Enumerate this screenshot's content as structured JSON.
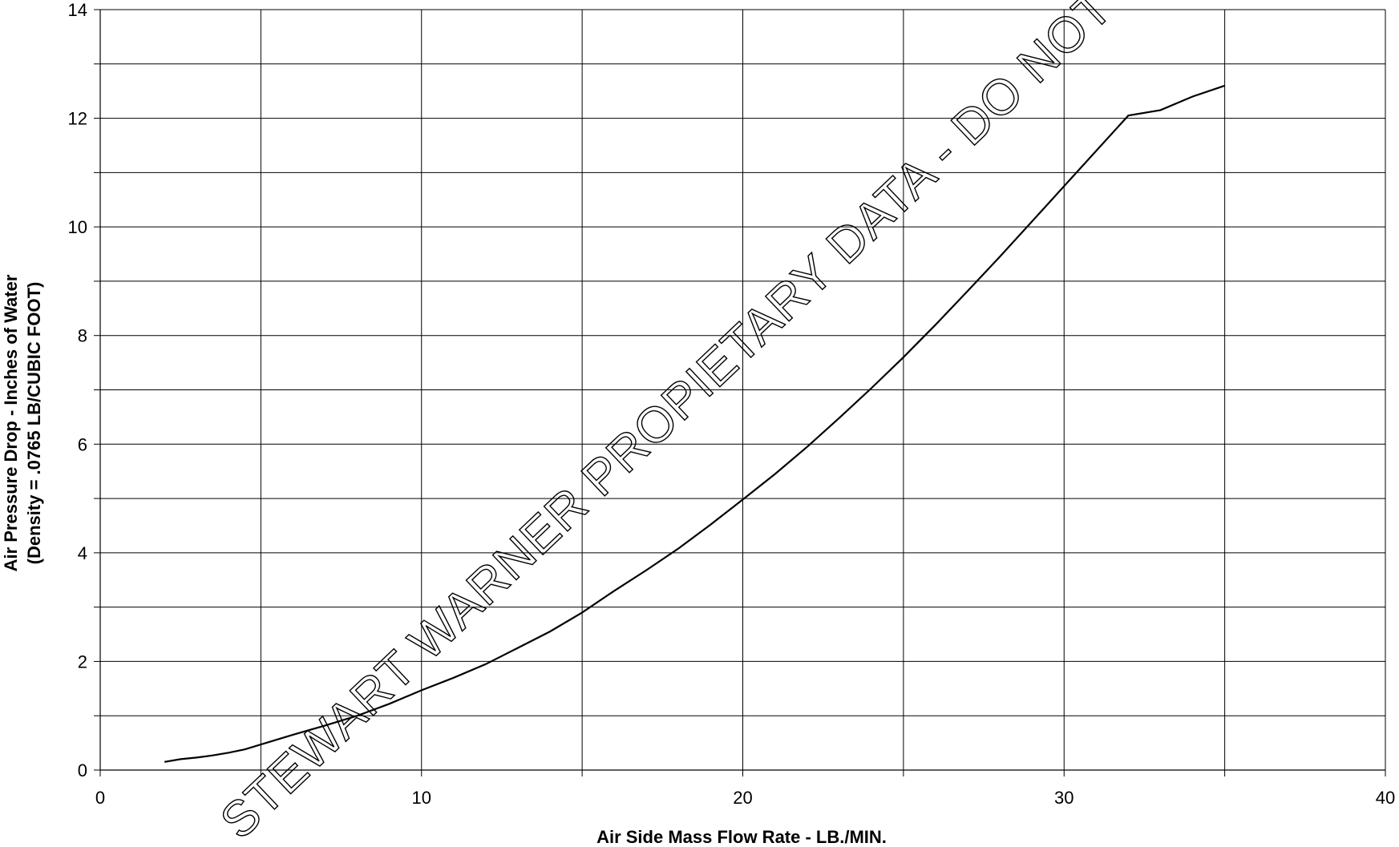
{
  "chart_data": {
    "type": "line",
    "title": "",
    "xlabel": "Air Side Mass Flow Rate - LB./MIN.",
    "ylabel_line1": "Air Pressure Drop - Inches of Water",
    "ylabel_line2": "(Density = .0765 LB/CUBIC FOOT)",
    "xlim": [
      0,
      40
    ],
    "ylim": [
      0,
      14
    ],
    "x_ticks": [
      0,
      10,
      20,
      30,
      40
    ],
    "y_ticks": [
      0,
      2,
      4,
      6,
      8,
      10,
      12,
      14
    ],
    "x_minor_gridlines": [
      5,
      15,
      25,
      35
    ],
    "y_minor_gridlines": [
      1,
      3,
      5,
      7,
      9,
      11,
      13
    ],
    "grid": true,
    "legend": "none",
    "series": [
      {
        "points": [
          [
            2,
            0.15
          ],
          [
            2.5,
            0.2
          ],
          [
            3,
            0.23
          ],
          [
            3.5,
            0.27
          ],
          [
            4,
            0.32
          ],
          [
            4.5,
            0.38
          ],
          [
            5,
            0.47
          ],
          [
            6,
            0.65
          ],
          [
            7,
            0.82
          ],
          [
            8,
            1.0
          ],
          [
            9,
            1.22
          ],
          [
            10,
            1.47
          ],
          [
            11,
            1.7
          ],
          [
            12,
            1.95
          ],
          [
            13,
            2.25
          ],
          [
            14,
            2.55
          ],
          [
            15,
            2.9
          ],
          [
            16,
            3.3
          ],
          [
            17,
            3.68
          ],
          [
            18,
            4.08
          ],
          [
            19,
            4.52
          ],
          [
            20,
            4.98
          ],
          [
            21,
            5.45
          ],
          [
            22,
            5.95
          ],
          [
            23,
            6.48
          ],
          [
            24,
            7.03
          ],
          [
            25,
            7.6
          ],
          [
            26,
            8.2
          ],
          [
            27,
            8.82
          ],
          [
            28,
            9.45
          ],
          [
            29,
            10.1
          ],
          [
            30,
            10.75
          ],
          [
            31,
            11.4
          ],
          [
            32,
            12.05
          ],
          [
            33,
            12.15
          ],
          [
            34,
            12.4
          ],
          [
            35,
            12.6
          ]
        ]
      }
    ]
  },
  "watermark": {
    "text": "STEWART WARNER PROPIETARY DATA - DO NOT DUPLICATE",
    "color": "#000000"
  },
  "colors": {
    "line": "#000000",
    "grid": "#000000",
    "background": "#ffffff"
  }
}
